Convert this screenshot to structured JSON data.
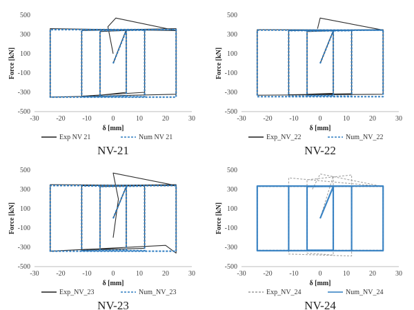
{
  "chart_data": [
    {
      "type": "line",
      "caption": "NV-21",
      "xlabel": "δ [mm]",
      "ylabel": "Force [kN]",
      "xlim": [
        -30,
        30
      ],
      "ylim": [
        -500,
        500
      ],
      "xticks": [
        -30,
        -20,
        -10,
        0,
        10,
        20,
        30
      ],
      "yticks": [
        -500,
        -300,
        -100,
        100,
        300,
        500
      ],
      "legend_position": "bottom",
      "series": [
        {
          "name": "Exp NV 21",
          "color": "#1a1a1a",
          "dash": "solid",
          "values": [
            [
              0,
              0
            ],
            [
              5,
              350
            ],
            [
              5,
              -300
            ],
            [
              -5,
              -330
            ],
            [
              -5,
              330
            ],
            [
              12,
              350
            ],
            [
              12,
              -300
            ],
            [
              -12,
              -340
            ],
            [
              -12,
              340
            ],
            [
              24,
              360
            ],
            [
              24,
              -320
            ],
            [
              -24,
              -350
            ],
            [
              -24,
              360
            ],
            [
              24,
              340
            ],
            [
              1,
              470
            ],
            [
              -2,
              380
            ],
            [
              0,
              100
            ]
          ]
        },
        {
          "name": "Num NV 21",
          "color": "#2b7bc0",
          "dash": "dashed",
          "values": [
            [
              0,
              0
            ],
            [
              5,
              340
            ],
            [
              5,
              -340
            ],
            [
              -5,
              -340
            ],
            [
              -5,
              340
            ],
            [
              12,
              345
            ],
            [
              12,
              -345
            ],
            [
              -12,
              -345
            ],
            [
              -12,
              345
            ],
            [
              24,
              350
            ],
            [
              24,
              -350
            ],
            [
              -24,
              -350
            ],
            [
              -24,
              350
            ],
            [
              24,
              350
            ]
          ]
        }
      ]
    },
    {
      "type": "line",
      "caption": "NV-22",
      "xlabel": "δ [mm]",
      "ylabel": "Force [kN]",
      "xlim": [
        -30,
        30
      ],
      "ylim": [
        -500,
        500
      ],
      "xticks": [
        -30,
        -20,
        -10,
        0,
        10,
        20,
        30
      ],
      "yticks": [
        -500,
        -300,
        -100,
        100,
        300,
        500
      ],
      "legend_position": "bottom",
      "series": [
        {
          "name": "Exp_NV_22",
          "color": "#1a1a1a",
          "dash": "solid",
          "values": [
            [
              0,
              0
            ],
            [
              5,
              340
            ],
            [
              5,
              -310
            ],
            [
              -5,
              -320
            ],
            [
              -5,
              330
            ],
            [
              12,
              345
            ],
            [
              12,
              -315
            ],
            [
              -12,
              -325
            ],
            [
              -12,
              340
            ],
            [
              24,
              350
            ],
            [
              24,
              -320
            ],
            [
              -24,
              -330
            ],
            [
              -24,
              350
            ],
            [
              24,
              345
            ],
            [
              0,
              470
            ],
            [
              -1,
              360
            ]
          ]
        },
        {
          "name": "Num_NV_22",
          "color": "#2b7bc0",
          "dash": "dashed",
          "values": [
            [
              0,
              0
            ],
            [
              5,
              335
            ],
            [
              5,
              -335
            ],
            [
              -5,
              -335
            ],
            [
              -5,
              335
            ],
            [
              12,
              340
            ],
            [
              12,
              -340
            ],
            [
              -12,
              -340
            ],
            [
              -12,
              340
            ],
            [
              24,
              345
            ],
            [
              24,
              -345
            ],
            [
              -24,
              -345
            ],
            [
              -24,
              345
            ],
            [
              24,
              345
            ]
          ]
        }
      ]
    },
    {
      "type": "line",
      "caption": "NV-23",
      "xlabel": "δ [mm]",
      "ylabel": "Force [kN]",
      "xlim": [
        -30,
        30
      ],
      "ylim": [
        -500,
        500
      ],
      "xticks": [
        -30,
        -20,
        -10,
        0,
        10,
        20,
        30
      ],
      "yticks": [
        -500,
        -300,
        -100,
        100,
        300,
        500
      ],
      "legend_position": "bottom",
      "series": [
        {
          "name": "Exp_NV_23",
          "color": "#1a1a1a",
          "dash": "solid",
          "values": [
            [
              0,
              0
            ],
            [
              5,
              330
            ],
            [
              5,
              -300
            ],
            [
              -5,
              -320
            ],
            [
              -5,
              330
            ],
            [
              12,
              340
            ],
            [
              12,
              -310
            ],
            [
              -12,
              -330
            ],
            [
              -12,
              340
            ],
            [
              24,
              350
            ],
            [
              24,
              -360
            ],
            [
              20,
              -280
            ],
            [
              -24,
              -340
            ],
            [
              -24,
              350
            ],
            [
              24,
              340
            ],
            [
              0,
              470
            ],
            [
              2,
              200
            ],
            [
              0,
              -200
            ]
          ]
        },
        {
          "name": "Num_NV_23",
          "color": "#2b7bc0",
          "dash": "dashed",
          "values": [
            [
              0,
              0
            ],
            [
              5,
              330
            ],
            [
              5,
              -330
            ],
            [
              -5,
              -330
            ],
            [
              -5,
              330
            ],
            [
              12,
              335
            ],
            [
              12,
              -335
            ],
            [
              -12,
              -335
            ],
            [
              -12,
              335
            ],
            [
              24,
              340
            ],
            [
              24,
              -340
            ],
            [
              -24,
              -340
            ],
            [
              -24,
              340
            ],
            [
              24,
              340
            ]
          ]
        }
      ]
    },
    {
      "type": "line",
      "caption": "NV-24",
      "xlabel": "δ [mm]",
      "ylabel": "Force [kN]",
      "xlim": [
        -30,
        30
      ],
      "ylim": [
        -500,
        500
      ],
      "xticks": [
        -30,
        -20,
        -10,
        0,
        10,
        20,
        30
      ],
      "yticks": [
        -500,
        -300,
        -100,
        100,
        300,
        500
      ],
      "legend_position": "bottom",
      "series": [
        {
          "name": "Exp_NV_24",
          "color": "#9a9a9a",
          "dash": "dashed",
          "values": [
            [
              0,
              0
            ],
            [
              5,
              440
            ],
            [
              5,
              -380
            ],
            [
              -5,
              -360
            ],
            [
              -5,
              400
            ],
            [
              12,
              450
            ],
            [
              12,
              -390
            ],
            [
              -12,
              -370
            ],
            [
              -12,
              420
            ],
            [
              24,
              330
            ],
            [
              24,
              -330
            ],
            [
              -24,
              -330
            ],
            [
              -24,
              330
            ],
            [
              24,
              330
            ],
            [
              0,
              460
            ],
            [
              -3,
              300
            ]
          ]
        },
        {
          "name": "Num_NV_24",
          "color": "#2b7bc0",
          "dash": "solid",
          "values": [
            [
              0,
              0
            ],
            [
              5,
              330
            ],
            [
              5,
              -330
            ],
            [
              -5,
              -330
            ],
            [
              -5,
              330
            ],
            [
              12,
              335
            ],
            [
              12,
              -335
            ],
            [
              -12,
              -335
            ],
            [
              -12,
              335
            ],
            [
              24,
              335
            ],
            [
              24,
              -335
            ],
            [
              -24,
              -335
            ],
            [
              -24,
              335
            ],
            [
              24,
              335
            ]
          ]
        }
      ]
    }
  ]
}
